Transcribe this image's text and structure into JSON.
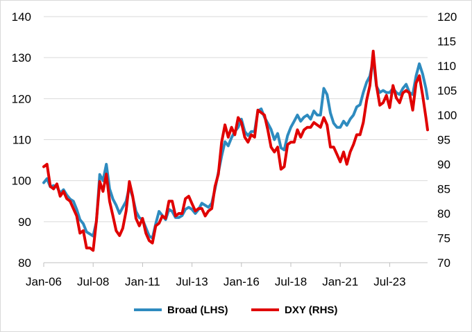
{
  "chart_data": {
    "type": "line",
    "title": "",
    "xlabel": "",
    "ylabel": "",
    "x_tick_labels": [
      "Jan-06",
      "Jul-08",
      "Jan-11",
      "Jul-13",
      "Jan-16",
      "Jul-18",
      "Jan-21",
      "Jul-23"
    ],
    "left_axis": {
      "ylim": [
        80,
        140
      ],
      "ticks": [
        80,
        90,
        100,
        110,
        120,
        130,
        140
      ]
    },
    "right_axis": {
      "ylim": [
        70,
        120
      ],
      "ticks": [
        70,
        75,
        80,
        85,
        90,
        95,
        100,
        105,
        110,
        115,
        120
      ]
    },
    "grid": "horizontal",
    "legend_position": "bottom",
    "series": [
      {
        "name": "Broad (LHS)",
        "axis": "left",
        "color": "#2e8bbf",
        "points": [
          [
            "2006-01",
            99.5
          ],
          [
            "2006-03",
            100.5
          ],
          [
            "2006-05",
            98.5
          ],
          [
            "2006-07",
            98.8
          ],
          [
            "2006-09",
            98.5
          ],
          [
            "2006-11",
            97.0
          ],
          [
            "2007-01",
            97.8
          ],
          [
            "2007-03",
            96.5
          ],
          [
            "2007-05",
            95.5
          ],
          [
            "2007-07",
            95.0
          ],
          [
            "2007-09",
            93.0
          ],
          [
            "2007-11",
            90.5
          ],
          [
            "2008-01",
            89.5
          ],
          [
            "2008-03",
            87.5
          ],
          [
            "2008-05",
            87.0
          ],
          [
            "2008-07",
            86.5
          ],
          [
            "2008-09",
            90.0
          ],
          [
            "2008-11",
            101.5
          ],
          [
            "2009-01",
            100.0
          ],
          [
            "2009-03",
            104.0
          ],
          [
            "2009-05",
            98.0
          ],
          [
            "2009-07",
            95.5
          ],
          [
            "2009-09",
            94.0
          ],
          [
            "2009-11",
            92.0
          ],
          [
            "2010-01",
            93.5
          ],
          [
            "2010-03",
            95.0
          ],
          [
            "2010-05",
            98.5
          ],
          [
            "2010-07",
            96.0
          ],
          [
            "2010-09",
            92.5
          ],
          [
            "2010-11",
            91.0
          ],
          [
            "2011-01",
            90.5
          ],
          [
            "2011-03",
            88.5
          ],
          [
            "2011-05",
            86.5
          ],
          [
            "2011-07",
            86.0
          ],
          [
            "2011-09",
            89.5
          ],
          [
            "2011-11",
            92.5
          ],
          [
            "2012-01",
            91.5
          ],
          [
            "2012-03",
            90.5
          ],
          [
            "2012-05",
            93.0
          ],
          [
            "2012-07",
            92.5
          ],
          [
            "2012-09",
            91.0
          ],
          [
            "2012-11",
            91.0
          ],
          [
            "2013-01",
            91.5
          ],
          [
            "2013-03",
            93.0
          ],
          [
            "2013-05",
            93.5
          ],
          [
            "2013-07",
            93.0
          ],
          [
            "2013-09",
            92.0
          ],
          [
            "2013-11",
            93.0
          ],
          [
            "2014-01",
            94.5
          ],
          [
            "2014-03",
            94.0
          ],
          [
            "2014-05",
            93.5
          ],
          [
            "2014-07",
            94.5
          ],
          [
            "2014-09",
            98.0
          ],
          [
            "2014-11",
            102.0
          ],
          [
            "2015-01",
            106.0
          ],
          [
            "2015-03",
            109.5
          ],
          [
            "2015-05",
            108.5
          ],
          [
            "2015-07",
            110.5
          ],
          [
            "2015-09",
            112.0
          ],
          [
            "2015-11",
            113.0
          ],
          [
            "2016-01",
            115.0
          ],
          [
            "2016-03",
            112.0
          ],
          [
            "2016-05",
            111.0
          ],
          [
            "2016-07",
            112.0
          ],
          [
            "2016-09",
            112.0
          ],
          [
            "2016-11",
            117.0
          ],
          [
            "2017-01",
            117.5
          ],
          [
            "2017-03",
            115.5
          ],
          [
            "2017-05",
            114.0
          ],
          [
            "2017-07",
            112.5
          ],
          [
            "2017-09",
            110.0
          ],
          [
            "2017-11",
            111.5
          ],
          [
            "2018-01",
            108.0
          ],
          [
            "2018-03",
            107.5
          ],
          [
            "2018-05",
            111.0
          ],
          [
            "2018-07",
            113.0
          ],
          [
            "2018-09",
            114.5
          ],
          [
            "2018-11",
            116.0
          ],
          [
            "2019-01",
            114.5
          ],
          [
            "2019-03",
            115.5
          ],
          [
            "2019-05",
            116.0
          ],
          [
            "2019-07",
            115.0
          ],
          [
            "2019-09",
            117.0
          ],
          [
            "2019-11",
            116.0
          ],
          [
            "2020-01",
            116.0
          ],
          [
            "2020-03",
            122.5
          ],
          [
            "2020-05",
            121.0
          ],
          [
            "2020-07",
            116.5
          ],
          [
            "2020-09",
            114.0
          ],
          [
            "2020-11",
            113.0
          ],
          [
            "2021-01",
            113.0
          ],
          [
            "2021-03",
            114.5
          ],
          [
            "2021-05",
            113.5
          ],
          [
            "2021-07",
            115.0
          ],
          [
            "2021-09",
            116.0
          ],
          [
            "2021-11",
            118.0
          ],
          [
            "2022-01",
            118.5
          ],
          [
            "2022-03",
            121.5
          ],
          [
            "2022-05",
            124.0
          ],
          [
            "2022-07",
            125.5
          ],
          [
            "2022-09",
            129.5
          ],
          [
            "2022-11",
            123.0
          ],
          [
            "2023-01",
            121.5
          ],
          [
            "2023-03",
            122.0
          ],
          [
            "2023-05",
            121.5
          ],
          [
            "2023-07",
            121.5
          ],
          [
            "2023-09",
            122.5
          ],
          [
            "2023-11",
            121.5
          ],
          [
            "2024-01",
            121.0
          ],
          [
            "2024-03",
            122.5
          ],
          [
            "2024-05",
            123.5
          ],
          [
            "2024-07",
            121.5
          ],
          [
            "2024-09",
            121.0
          ],
          [
            "2024-11",
            125.5
          ],
          [
            "2025-01",
            128.5
          ],
          [
            "2025-03",
            126.0
          ],
          [
            "2025-05",
            122.5
          ],
          [
            "2025-06",
            120.0
          ]
        ]
      },
      {
        "name": "DXY (RHS)",
        "axis": "right",
        "color": "#e00000",
        "points": [
          [
            "2006-01",
            89.5
          ],
          [
            "2006-03",
            90.0
          ],
          [
            "2006-05",
            85.5
          ],
          [
            "2006-07",
            85.0
          ],
          [
            "2006-09",
            86.0
          ],
          [
            "2006-11",
            83.5
          ],
          [
            "2007-01",
            84.5
          ],
          [
            "2007-03",
            83.0
          ],
          [
            "2007-05",
            82.5
          ],
          [
            "2007-07",
            81.0
          ],
          [
            "2007-09",
            79.5
          ],
          [
            "2007-11",
            76.0
          ],
          [
            "2008-01",
            76.5
          ],
          [
            "2008-03",
            73.0
          ],
          [
            "2008-05",
            73.0
          ],
          [
            "2008-07",
            72.5
          ],
          [
            "2008-09",
            78.5
          ],
          [
            "2008-11",
            86.5
          ],
          [
            "2009-01",
            84.5
          ],
          [
            "2009-03",
            88.0
          ],
          [
            "2009-05",
            82.5
          ],
          [
            "2009-07",
            79.5
          ],
          [
            "2009-09",
            76.5
          ],
          [
            "2009-11",
            75.5
          ],
          [
            "2010-01",
            77.0
          ],
          [
            "2010-03",
            80.5
          ],
          [
            "2010-05",
            86.5
          ],
          [
            "2010-07",
            83.5
          ],
          [
            "2010-09",
            79.0
          ],
          [
            "2010-11",
            77.5
          ],
          [
            "2011-01",
            79.0
          ],
          [
            "2011-03",
            76.0
          ],
          [
            "2011-05",
            74.5
          ],
          [
            "2011-07",
            74.0
          ],
          [
            "2011-09",
            77.5
          ],
          [
            "2011-11",
            78.0
          ],
          [
            "2012-01",
            79.5
          ],
          [
            "2012-03",
            79.0
          ],
          [
            "2012-05",
            82.5
          ],
          [
            "2012-07",
            82.5
          ],
          [
            "2012-09",
            79.5
          ],
          [
            "2012-11",
            80.0
          ],
          [
            "2013-01",
            80.0
          ],
          [
            "2013-03",
            83.0
          ],
          [
            "2013-05",
            83.5
          ],
          [
            "2013-07",
            82.0
          ],
          [
            "2013-09",
            80.5
          ],
          [
            "2013-11",
            81.0
          ],
          [
            "2014-01",
            81.0
          ],
          [
            "2014-03",
            79.5
          ],
          [
            "2014-05",
            80.5
          ],
          [
            "2014-07",
            81.0
          ],
          [
            "2014-09",
            85.5
          ],
          [
            "2014-11",
            88.0
          ],
          [
            "2015-01",
            94.5
          ],
          [
            "2015-03",
            98.0
          ],
          [
            "2015-05",
            95.5
          ],
          [
            "2015-07",
            97.5
          ],
          [
            "2015-09",
            96.0
          ],
          [
            "2015-11",
            99.5
          ],
          [
            "2016-01",
            98.5
          ],
          [
            "2016-03",
            95.5
          ],
          [
            "2016-05",
            94.5
          ],
          [
            "2016-07",
            96.0
          ],
          [
            "2016-09",
            95.5
          ],
          [
            "2016-11",
            101.0
          ],
          [
            "2017-01",
            100.5
          ],
          [
            "2017-03",
            100.0
          ],
          [
            "2017-05",
            97.0
          ],
          [
            "2017-07",
            93.5
          ],
          [
            "2017-09",
            92.5
          ],
          [
            "2017-11",
            93.5
          ],
          [
            "2018-01",
            89.0
          ],
          [
            "2018-03",
            89.5
          ],
          [
            "2018-05",
            94.0
          ],
          [
            "2018-07",
            94.5
          ],
          [
            "2018-09",
            94.5
          ],
          [
            "2018-11",
            97.0
          ],
          [
            "2019-01",
            95.5
          ],
          [
            "2019-03",
            97.0
          ],
          [
            "2019-05",
            97.5
          ],
          [
            "2019-07",
            97.5
          ],
          [
            "2019-09",
            98.5
          ],
          [
            "2019-11",
            98.0
          ],
          [
            "2020-01",
            97.5
          ],
          [
            "2020-03",
            99.5
          ],
          [
            "2020-05",
            98.0
          ],
          [
            "2020-07",
            93.5
          ],
          [
            "2020-09",
            93.5
          ],
          [
            "2020-11",
            92.0
          ],
          [
            "2021-01",
            90.5
          ],
          [
            "2021-03",
            92.5
          ],
          [
            "2021-05",
            90.0
          ],
          [
            "2021-07",
            92.5
          ],
          [
            "2021-09",
            94.0
          ],
          [
            "2021-11",
            96.0
          ],
          [
            "2022-01",
            96.0
          ],
          [
            "2022-03",
            98.5
          ],
          [
            "2022-05",
            103.0
          ],
          [
            "2022-07",
            106.0
          ],
          [
            "2022-09",
            113.0
          ],
          [
            "2022-11",
            106.0
          ],
          [
            "2023-01",
            102.0
          ],
          [
            "2023-03",
            102.5
          ],
          [
            "2023-05",
            104.0
          ],
          [
            "2023-07",
            101.5
          ],
          [
            "2023-09",
            106.0
          ],
          [
            "2023-11",
            103.5
          ],
          [
            "2024-01",
            102.5
          ],
          [
            "2024-03",
            104.5
          ],
          [
            "2024-05",
            105.0
          ],
          [
            "2024-07",
            104.5
          ],
          [
            "2024-09",
            101.0
          ],
          [
            "2024-11",
            106.5
          ],
          [
            "2025-01",
            108.0
          ],
          [
            "2025-03",
            104.0
          ],
          [
            "2025-05",
            99.5
          ],
          [
            "2025-06",
            97.0
          ]
        ]
      }
    ]
  }
}
